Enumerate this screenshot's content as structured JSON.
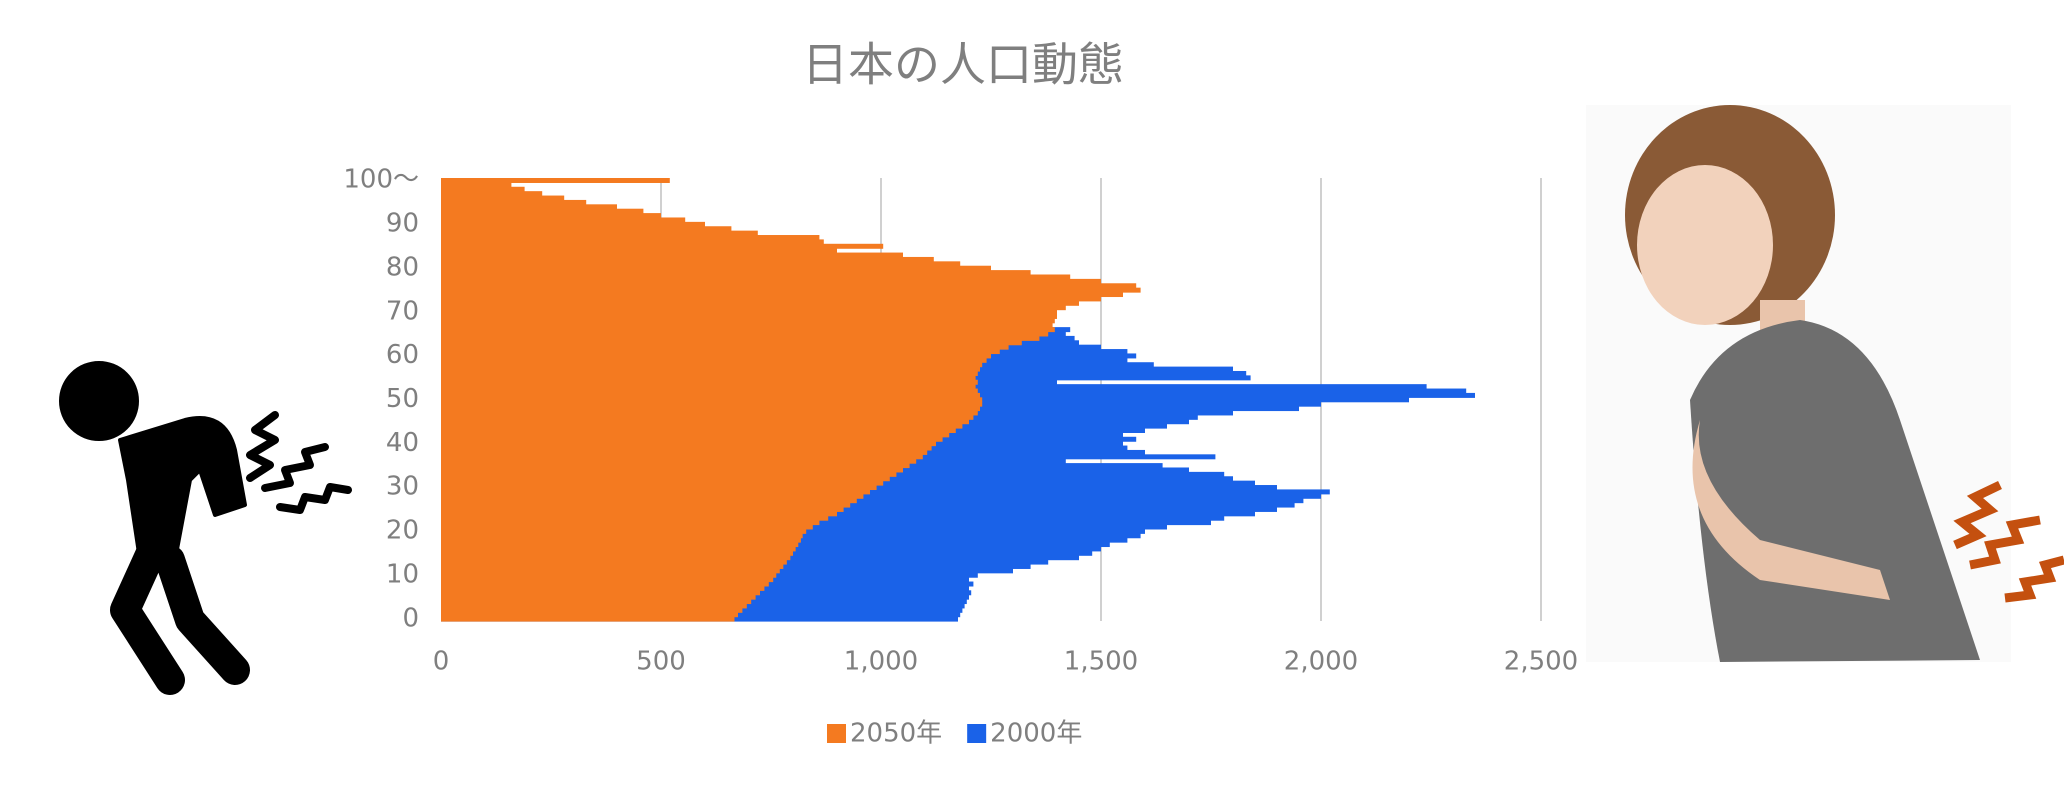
{
  "chart_data": {
    "type": "bar",
    "orientation": "horizontal",
    "overlap": true,
    "title": "日本の人口動態",
    "categories": [
      "0",
      null,
      null,
      null,
      null,
      null,
      null,
      null,
      null,
      null,
      "10",
      null,
      null,
      null,
      null,
      null,
      null,
      null,
      null,
      null,
      "20",
      null,
      null,
      null,
      null,
      null,
      null,
      null,
      null,
      null,
      "30",
      null,
      null,
      null,
      null,
      null,
      null,
      null,
      null,
      null,
      "40",
      null,
      null,
      null,
      null,
      null,
      null,
      null,
      null,
      null,
      "50",
      null,
      null,
      null,
      null,
      null,
      null,
      null,
      null,
      null,
      "60",
      null,
      null,
      null,
      null,
      null,
      null,
      null,
      null,
      null,
      "70",
      null,
      null,
      null,
      null,
      null,
      null,
      null,
      null,
      null,
      "80",
      null,
      null,
      null,
      null,
      null,
      null,
      null,
      null,
      null,
      "90",
      null,
      null,
      null,
      null,
      null,
      null,
      null,
      null,
      null,
      "100～"
    ],
    "series": [
      {
        "name": "2050年",
        "color": "#f47a20",
        "values": [
          667,
          675,
          685,
          695,
          705,
          715,
          725,
          735,
          745,
          755,
          762,
          770,
          778,
          786,
          794,
          800,
          806,
          812,
          818,
          822,
          830,
          845,
          860,
          880,
          900,
          915,
          930,
          945,
          960,
          975,
          990,
          1005,
          1020,
          1035,
          1050,
          1065,
          1080,
          1095,
          1105,
          1115,
          1125,
          1140,
          1155,
          1170,
          1185,
          1200,
          1210,
          1220,
          1225,
          1230,
          1230,
          1225,
          1220,
          1215,
          1220,
          1215,
          1220,
          1225,
          1230,
          1240,
          1250,
          1270,
          1290,
          1320,
          1360,
          1380,
          1395,
          1390,
          1395,
          1400,
          1400,
          1420,
          1450,
          1500,
          1550,
          1590,
          1580,
          1500,
          1430,
          1340,
          1250,
          1180,
          1120,
          1050,
          900,
          1005,
          870,
          860,
          720,
          660,
          600,
          555,
          500,
          460,
          400,
          330,
          280,
          230,
          190,
          160,
          520
        ]
      },
      {
        "name": "2000年",
        "color": "#1a62e8",
        "values": [
          1175,
          1180,
          1185,
          1190,
          1195,
          1200,
          1205,
          1200,
          1210,
          1200,
          1220,
          1300,
          1340,
          1380,
          1450,
          1480,
          1500,
          1520,
          1560,
          1590,
          1600,
          1650,
          1750,
          1780,
          1850,
          1900,
          1940,
          1960,
          2000,
          2020,
          1900,
          1850,
          1800,
          1780,
          1700,
          1640,
          1420,
          1760,
          1600,
          1560,
          1550,
          1580,
          1550,
          1600,
          1650,
          1700,
          1720,
          1800,
          1950,
          2000,
          2200,
          2350,
          2330,
          2240,
          1400,
          1840,
          1830,
          1800,
          1620,
          1560,
          1580,
          1560,
          1500,
          1450,
          1440,
          1420,
          1430,
          1380,
          1330,
          1290,
          1250,
          1200,
          1150,
          1100,
          1050,
          1000,
          950,
          900,
          850,
          800,
          750,
          700,
          650,
          600,
          550,
          500,
          450,
          400,
          350,
          300,
          250,
          200,
          160,
          130,
          100,
          80,
          60,
          40,
          30,
          20,
          15
        ]
      }
    ],
    "xlim": [
      0,
      2500
    ],
    "xticks": [
      0,
      500,
      {
        "value": 1000,
        "label": "1,000"
      },
      {
        "value": 1500,
        "label": "1,500"
      },
      {
        "value": 2000,
        "label": "2,000"
      },
      {
        "value": 2500,
        "label": "2,500"
      }
    ],
    "grid": true,
    "legend": "bottom"
  }
}
